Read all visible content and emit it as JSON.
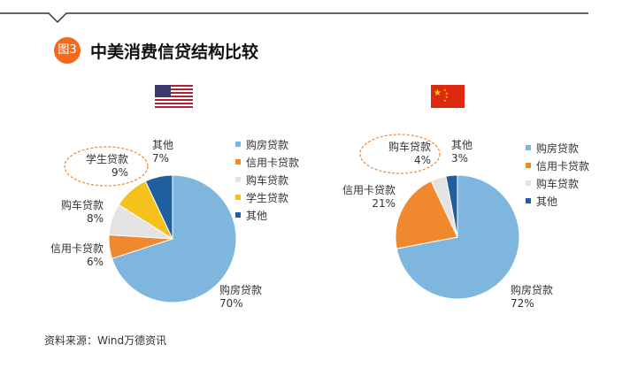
{
  "header": {
    "badge": "图3",
    "title": "中美消费信贷结构比较"
  },
  "source": "资料来源：Wind万德资讯",
  "colors": {
    "housing": "#7fb6de",
    "credit_card": "#f0882e",
    "auto": "#e3e3e3",
    "student": "#f5c21b",
    "other": "#1f5f9f",
    "header_accent": "#f26b1d",
    "callout": "#f0882e"
  },
  "flags": {
    "us": "us-flag-icon",
    "cn": "cn-flag-icon"
  },
  "chart_data": [
    {
      "type": "pie",
      "region": "US",
      "categories": [
        "购房贷款",
        "信用卡贷款",
        "购车贷款",
        "学生贷款",
        "其他"
      ],
      "values": [
        70,
        6,
        8,
        9,
        7
      ],
      "value_labels": [
        "70%",
        "6%",
        "8%",
        "9%",
        "7%"
      ],
      "legend": [
        "购房贷款",
        "信用卡贷款",
        "购车贷款",
        "学生贷款",
        "其他"
      ],
      "highlighted": "学生贷款"
    },
    {
      "type": "pie",
      "region": "China",
      "categories": [
        "购房贷款",
        "信用卡贷款",
        "购车贷款",
        "其他"
      ],
      "values": [
        72,
        21,
        4,
        3
      ],
      "value_labels": [
        "72%",
        "21%",
        "4%",
        "3%"
      ],
      "legend": [
        "购房贷款",
        "信用卡贷款",
        "购车贷款",
        "其他"
      ],
      "highlighted": "购车贷款"
    }
  ]
}
